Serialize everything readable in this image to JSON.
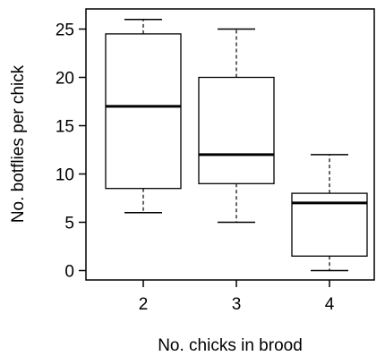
{
  "chart_data": {
    "type": "boxplot",
    "title": "",
    "xlabel": "No. chicks in brood",
    "ylabel": "No. botflies per chick",
    "categories": [
      "2",
      "3",
      "4"
    ],
    "boxes": [
      {
        "category": "2",
        "whisker_low": 6,
        "q1": 8.5,
        "median": 17,
        "q3": 24.5,
        "whisker_high": 26
      },
      {
        "category": "3",
        "whisker_low": 5,
        "q1": 9,
        "median": 12,
        "q3": 20,
        "whisker_high": 25
      },
      {
        "category": "4",
        "whisker_low": 0,
        "q1": 1.5,
        "median": 7,
        "q3": 8,
        "whisker_high": 12
      }
    ],
    "yticks": [
      0,
      5,
      10,
      15,
      20,
      25
    ],
    "ylim": [
      -1,
      27
    ],
    "grid": false,
    "legend": "none",
    "colors": {
      "stroke": "#000000",
      "box_fill": "#ffffff"
    }
  }
}
